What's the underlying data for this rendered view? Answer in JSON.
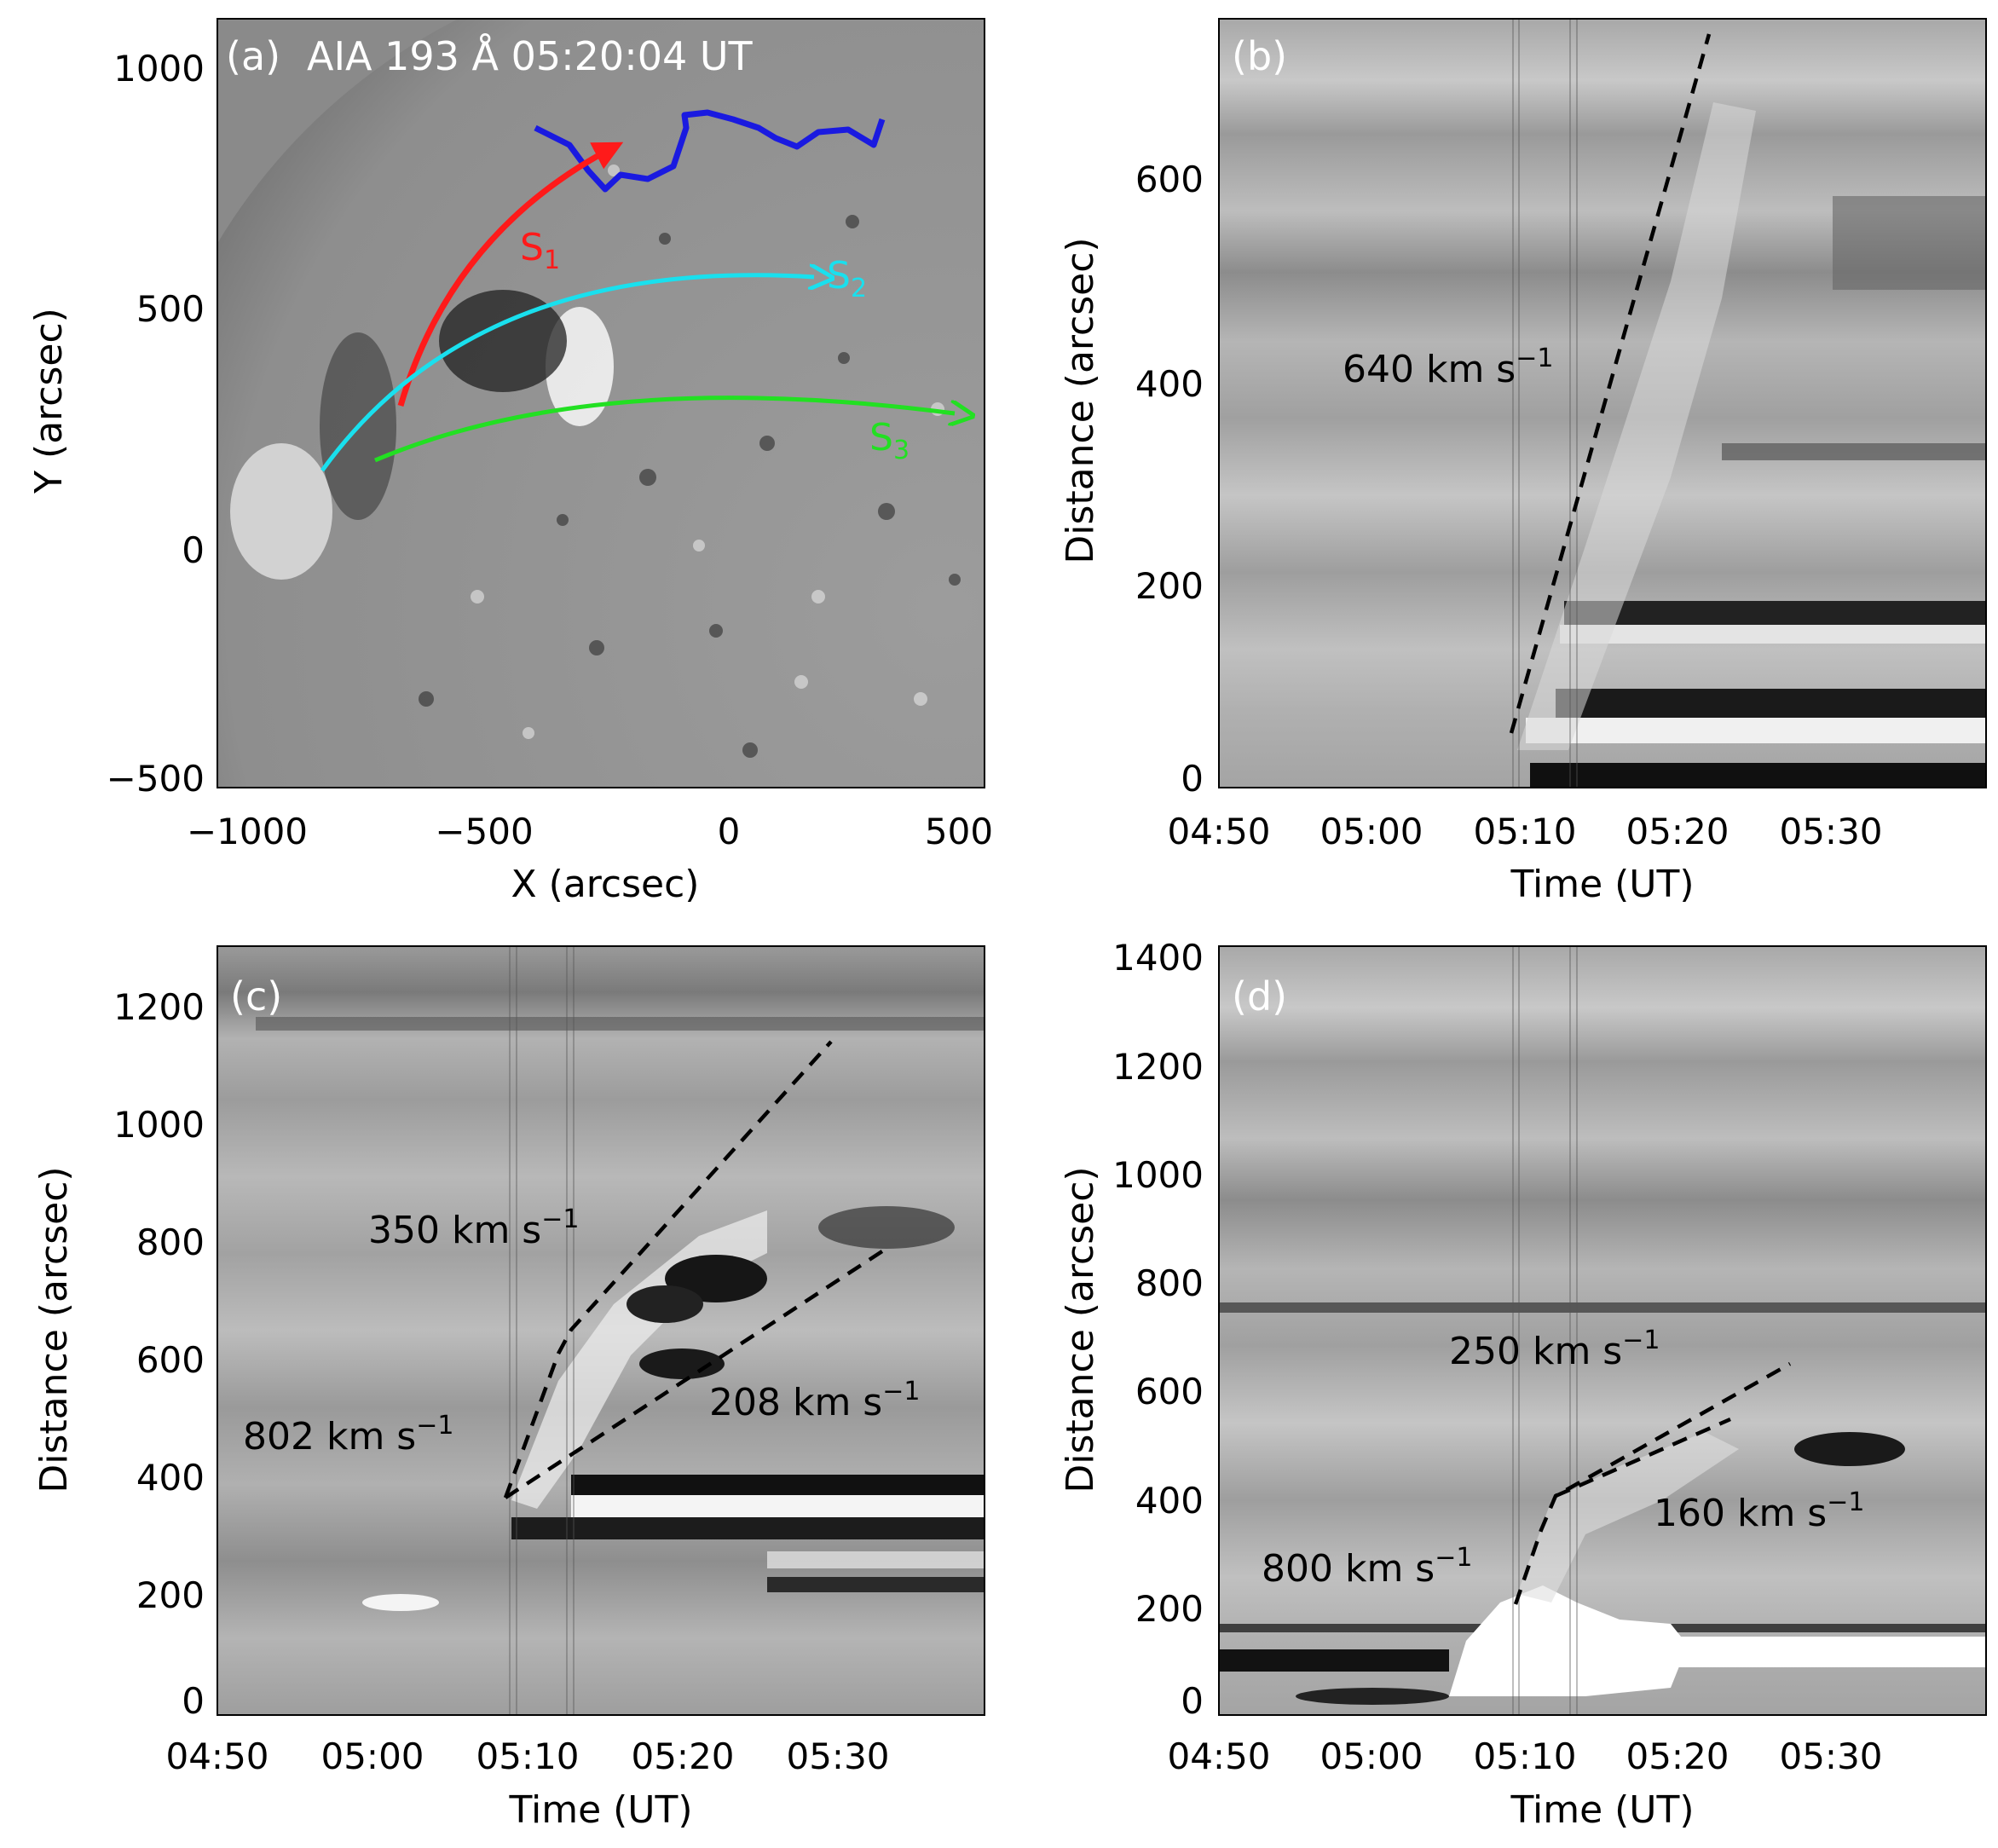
{
  "panels": {
    "a": {
      "label": "(a)",
      "title": "AIA 193 Å 05:20:04 UT",
      "xlabel": "X (arcsec)",
      "ylabel": "Y (arcsec)",
      "xticks": [
        "−1000",
        "−500",
        "0",
        "500"
      ],
      "yticks": [
        "1000",
        "500",
        "0",
        "−500"
      ],
      "slices": [
        {
          "name": "S",
          "sub": "1",
          "color": "#ff1a1a"
        },
        {
          "name": "S",
          "sub": "2",
          "color": "#19e0ee"
        },
        {
          "name": "S",
          "sub": "3",
          "color": "#22e022"
        }
      ],
      "boundary_color": "#1a1ae0"
    },
    "b": {
      "label": "(b)",
      "xlabel": "Time (UT)",
      "ylabel": "Distance (arcsec)",
      "xticks": [
        "04:50",
        "05:00",
        "05:10",
        "05:20",
        "05:30"
      ],
      "yticks": [
        "600",
        "400",
        "200",
        "0"
      ],
      "speeds": [
        {
          "value": "640 km s",
          "exp": "−1"
        }
      ]
    },
    "c": {
      "label": "(c)",
      "xlabel": "Time (UT)",
      "ylabel": "Distance (arcsec)",
      "xticks": [
        "04:50",
        "05:00",
        "05:10",
        "05:20",
        "05:30"
      ],
      "yticks": [
        "1200",
        "1000",
        "800",
        "600",
        "400",
        "200",
        "0"
      ],
      "speeds": [
        {
          "value": "350 km s",
          "exp": "−1"
        },
        {
          "value": "802 km s",
          "exp": "−1"
        },
        {
          "value": "208 km s",
          "exp": "−1"
        }
      ]
    },
    "d": {
      "label": "(d)",
      "xlabel": "Time (UT)",
      "ylabel": "Distance (arcsec)",
      "xticks": [
        "04:50",
        "05:00",
        "05:10",
        "05:20",
        "05:30"
      ],
      "yticks": [
        "1400",
        "1200",
        "1000",
        "800",
        "600",
        "400",
        "200",
        "0"
      ],
      "speeds": [
        {
          "value": "250 km s",
          "exp": "−1"
        },
        {
          "value": "160 km s",
          "exp": "−1"
        },
        {
          "value": "800 km s",
          "exp": "−1"
        }
      ]
    }
  }
}
